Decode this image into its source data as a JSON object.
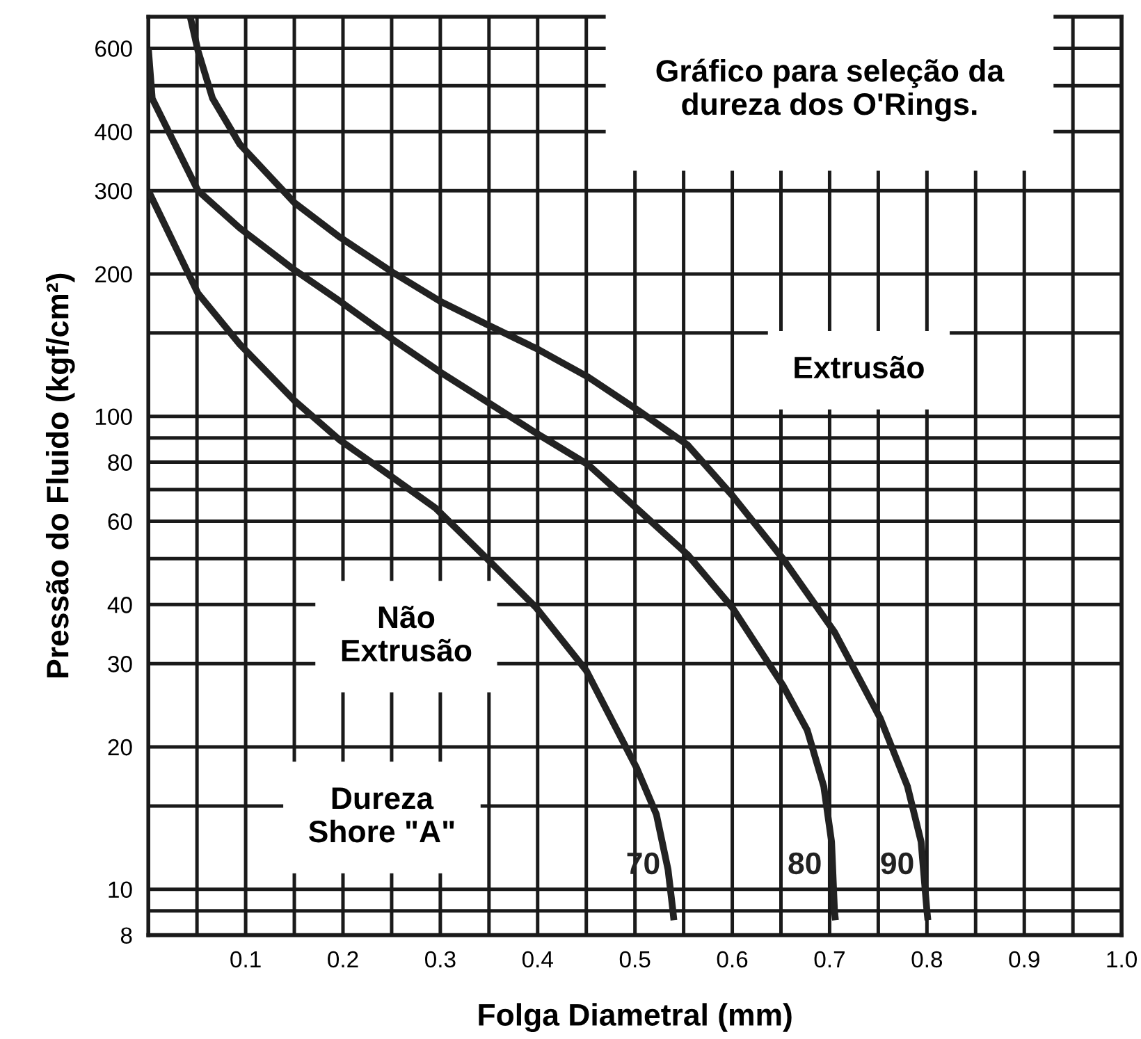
{
  "chart_data": {
    "type": "line",
    "title": "Gráfico para seleção da\ndureza dos O'Rings.",
    "xlabel": "Folga Diametral (mm)",
    "ylabel": "Pressão do Fluido (kgf/cm²)",
    "annotations": [
      "Extrusão",
      "Não\nExtrusão",
      "Dureza\nShore \"A\""
    ],
    "log": "y",
    "grid": true,
    "legend": false,
    "marker": "none",
    "line_style": "solid",
    "xlim": [
      0,
      1.0
    ],
    "ylim": [
      8,
      700
    ],
    "xticks": [
      {
        "value": 0.05,
        "label": null
      },
      0.1,
      {
        "value": 0.15,
        "label": null
      },
      0.2,
      {
        "value": 0.25,
        "label": null
      },
      0.3,
      {
        "value": 0.35,
        "label": null
      },
      0.4,
      {
        "value": 0.45,
        "label": null
      },
      0.5,
      {
        "value": 0.55,
        "label": null
      },
      0.6,
      {
        "value": 0.65,
        "label": null
      },
      0.7,
      {
        "value": 0.75,
        "label": null
      },
      0.8,
      {
        "value": 0.85,
        "label": null
      },
      0.9,
      {
        "value": 0.95,
        "label": null
      },
      {
        "value": 1.0,
        "label": "1.0"
      }
    ],
    "yticks": [
      8,
      {
        "value": 9,
        "label": null
      },
      10,
      {
        "value": 15,
        "label": null
      },
      20,
      30,
      40,
      {
        "value": 50,
        "label": null
      },
      60,
      {
        "value": 70,
        "label": null
      },
      80,
      {
        "value": 90,
        "label": null
      },
      100,
      {
        "value": 150,
        "label": null
      },
      200,
      300,
      400,
      {
        "value": 500,
        "label": null
      },
      600
    ],
    "series": [
      {
        "name": "70",
        "color": "#222222",
        "x": [
          0.0,
          0.051,
          0.094,
          0.15,
          0.197,
          0.252,
          0.295,
          0.348,
          0.398,
          0.45,
          0.502,
          0.522,
          0.534,
          0.539,
          0.54
        ],
        "values": [
          300,
          182,
          142,
          108,
          89,
          74,
          64,
          50,
          39.5,
          29,
          18,
          14.4,
          11,
          9,
          8.6
        ]
      },
      {
        "name": "80",
        "color": "#222222",
        "x": [
          0.0,
          0.004,
          0.051,
          0.094,
          0.15,
          0.197,
          0.252,
          0.3,
          0.349,
          0.399,
          0.452,
          0.505,
          0.554,
          0.6,
          0.652,
          0.677,
          0.694,
          0.702,
          0.705,
          0.706
        ],
        "values": [
          600,
          470,
          300,
          250,
          204,
          175,
          145,
          124,
          107,
          92,
          79,
          63,
          51,
          39.4,
          27,
          21.7,
          16.5,
          12.6,
          9,
          8.6
        ]
      },
      {
        "name": "90",
        "color": "#222222",
        "x": [
          0.043,
          0.051,
          0.066,
          0.094,
          0.15,
          0.197,
          0.252,
          0.3,
          0.349,
          0.399,
          0.452,
          0.503,
          0.554,
          0.6,
          0.652,
          0.705,
          0.752,
          0.78,
          0.794,
          0.8,
          0.801
        ],
        "values": [
          700,
          593,
          470,
          376,
          283,
          239,
          201,
          175,
          156,
          139,
          121,
          103,
          87,
          68,
          50,
          35,
          23,
          16.5,
          12.6,
          9,
          8.6
        ]
      }
    ]
  }
}
